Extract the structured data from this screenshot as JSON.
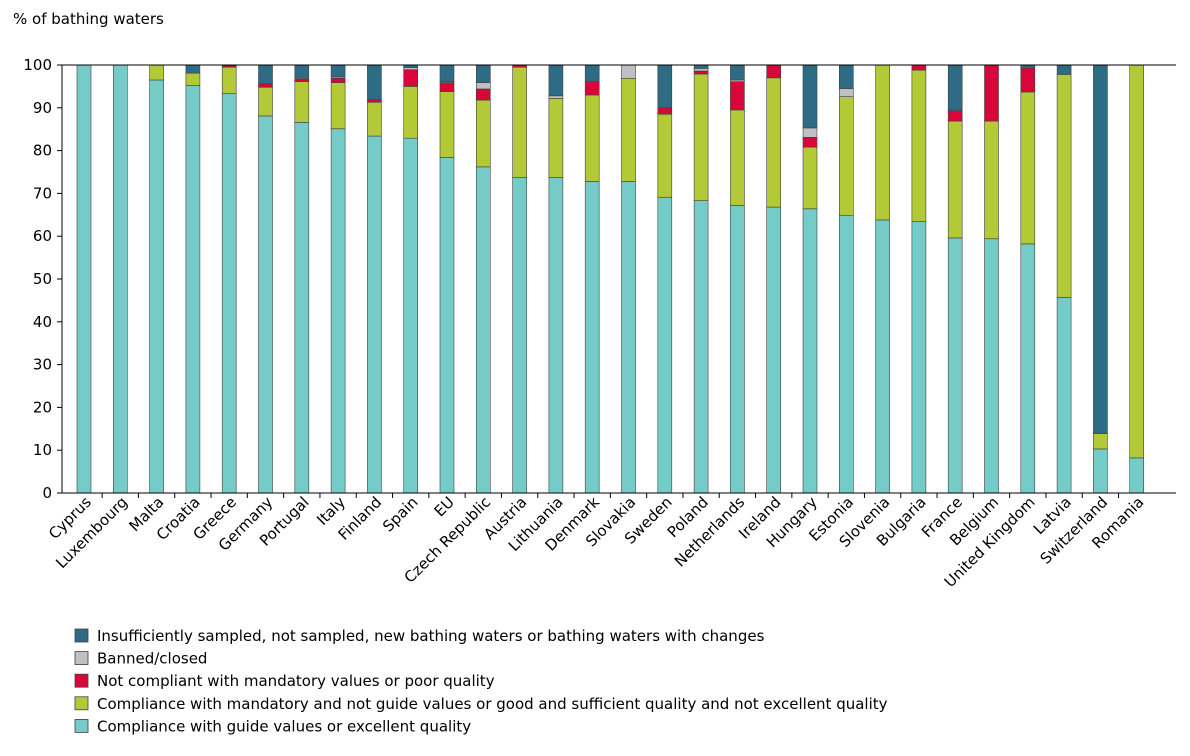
{
  "chart_data": {
    "type": "bar",
    "stacked": true,
    "ylabel": "% of bathing waters",
    "ylim": [
      0,
      100
    ],
    "yticks": [
      0,
      10,
      20,
      30,
      40,
      50,
      60,
      70,
      80,
      90,
      100
    ],
    "grid": "none",
    "legend_position": "bottom-left",
    "categories": [
      "Cyprus",
      "Luxembourg",
      "Malta",
      "Croatia",
      "Greece",
      "Germany",
      "Portugal",
      "Italy",
      "Finland",
      "Spain",
      "EU",
      "Czech Republic",
      "Austria",
      "Lithuania",
      "Denmark",
      "Slovakia",
      "Sweden",
      "Poland",
      "Netherlands",
      "Ireland",
      "Hungary",
      "Estonia",
      "Slovenia",
      "Bulgaria",
      "France",
      "Belgium",
      "United Kingdom",
      "Latvia",
      "Switzerland",
      "Romania"
    ],
    "series": [
      {
        "name": "Compliance with guide values or excellent quality",
        "color": "#74cbc8",
        "values": [
          100,
          100,
          96.5,
          95.2,
          93.3,
          88.1,
          86.6,
          85.1,
          83.4,
          82.9,
          78.4,
          76.2,
          73.7,
          73.7,
          72.8,
          72.8,
          69.1,
          68.3,
          67.2,
          66.8,
          66.4,
          64.8,
          63.8,
          63.4,
          59.6,
          59.4,
          58.2,
          45.7,
          10.3,
          8.2
        ]
      },
      {
        "name": "Compliance with mandatory and not guide values or good and sufficient quality and not excellent quality",
        "color": "#b3c936",
        "values": [
          0,
          0,
          3.5,
          2.9,
          6.2,
          6.7,
          9.5,
          10.8,
          7.9,
          12.1,
          15.4,
          15.6,
          25.8,
          18.5,
          20.2,
          24.1,
          19.4,
          29.6,
          22.3,
          30.2,
          14.4,
          27.8,
          36.2,
          35.4,
          27.3,
          27.5,
          35.5,
          52.1,
          3.6,
          91.8
        ]
      },
      {
        "name": "Not compliant with mandatory values or poor quality",
        "color": "#d9063a",
        "values": [
          0,
          0,
          0,
          0,
          0.3,
          0.8,
          0.6,
          1.0,
          0.6,
          3.9,
          2.1,
          2.6,
          0.5,
          0,
          3.1,
          0,
          1.5,
          0.7,
          6.6,
          3.0,
          2.3,
          0,
          0,
          1.2,
          2.4,
          13.1,
          5.6,
          0,
          0,
          0
        ]
      },
      {
        "name": "Banned/closed",
        "color": "#c0c0c4",
        "values": [
          0,
          0,
          0,
          0,
          0,
          0,
          0.2,
          0.3,
          0,
          0.5,
          0.2,
          1.5,
          0,
          0.6,
          0,
          3.1,
          0,
          0.6,
          0.4,
          0,
          2.2,
          1.9,
          0,
          0,
          0.2,
          0,
          0.2,
          0,
          0,
          0
        ]
      },
      {
        "name": "Insufficiently sampled, not sampled, new bathing waters or bathing waters with changes",
        "color": "#2e6b85",
        "values": [
          0,
          0,
          0,
          1.9,
          0.2,
          4.4,
          3.1,
          2.8,
          8.1,
          0.6,
          3.9,
          4.1,
          0,
          7.2,
          3.9,
          0,
          10.0,
          0.8,
          3.5,
          0,
          14.7,
          5.5,
          0,
          0,
          10.5,
          0,
          0.5,
          2.2,
          86.1,
          0
        ]
      }
    ],
    "legend_order": [
      4,
      3,
      2,
      1,
      0
    ]
  }
}
